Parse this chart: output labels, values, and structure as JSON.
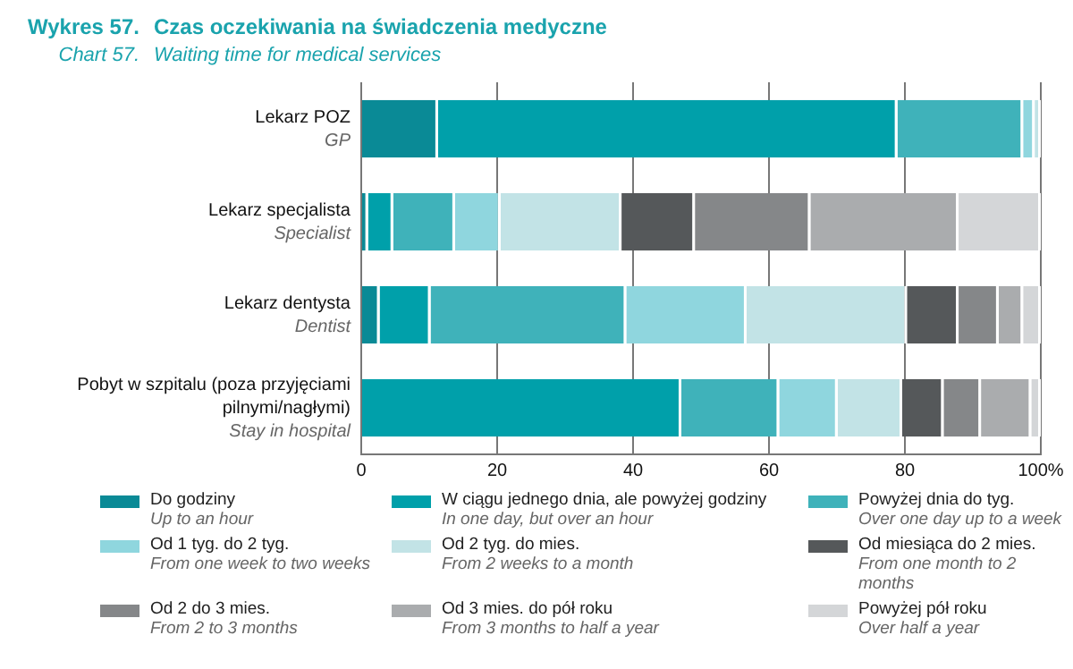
{
  "chart_data": {
    "type": "bar",
    "orientation": "horizontal",
    "stacked": true,
    "title": "Czas oczekiwania na świadczenia medyczne",
    "subtitle": "Waiting time for medical services",
    "annotations": [
      "Wykres 57.",
      "Chart 57."
    ],
    "categories": [
      "Lekarz POZ\nGP",
      "Lekarz specjalista\nSpecialist",
      "Lekarz dentysta\nDentist",
      "Pobyt w szpitalu (poza przyjęciami\npilnymi/nagłymi)\nStay in hospital"
    ],
    "series": [
      {
        "name": "Do godziny\nUp to an hour",
        "color": "#0a8a96",
        "values": [
          11.3,
          1.0,
          2.7,
          0
        ]
      },
      {
        "name": "W ciągu jednego dnia, ale powyżej godziny\nIn one day, but over an hour",
        "color": "#00a0aa",
        "values": [
          67.6,
          3.7,
          7.5,
          47.1
        ]
      },
      {
        "name": "Powyżej dnia do tyg.\nOver one day up to a week",
        "color": "#3fb2ba",
        "values": [
          18.5,
          9.1,
          28.8,
          14.4
        ]
      },
      {
        "name": "Od 1 tyg. do 2 tyg.\nFrom one week to two weeks",
        "color": "#8fd6de",
        "values": [
          1.7,
          6.7,
          17.7,
          8.6
        ]
      },
      {
        "name": "Od 2 tyg. do mies.\nFrom 2 weeks to a month",
        "color": "#c2e3e6",
        "values": [
          0.9,
          17.8,
          23.6,
          9.5
        ]
      },
      {
        "name": "Od miesiąca do 2 mies.\nFrom one month to 2 months",
        "color": "#55585a",
        "values": [
          0,
          10.8,
          7.6,
          6.1
        ]
      },
      {
        "name": "Od 2 do 3 mies.\nFrom 2 to 3 months",
        "color": "#858789",
        "values": [
          0,
          17.0,
          5.9,
          5.5
        ]
      },
      {
        "name": "Od 3 mies. do pół roku\nFrom 3 months  to half a year",
        "color": "#aaacae",
        "values": [
          0,
          21.8,
          3.6,
          7.4
        ]
      },
      {
        "name": "Powyżej pół roku\nOver half a year",
        "color": "#d4d6d8",
        "values": [
          0,
          12.1,
          2.6,
          1.4
        ]
      }
    ],
    "xlim": [
      0,
      100
    ],
    "xticks": [
      0,
      20,
      40,
      60,
      80,
      {
        "value": 100,
        "label": "100%"
      }
    ],
    "grid": "x",
    "legend": "bottom"
  }
}
